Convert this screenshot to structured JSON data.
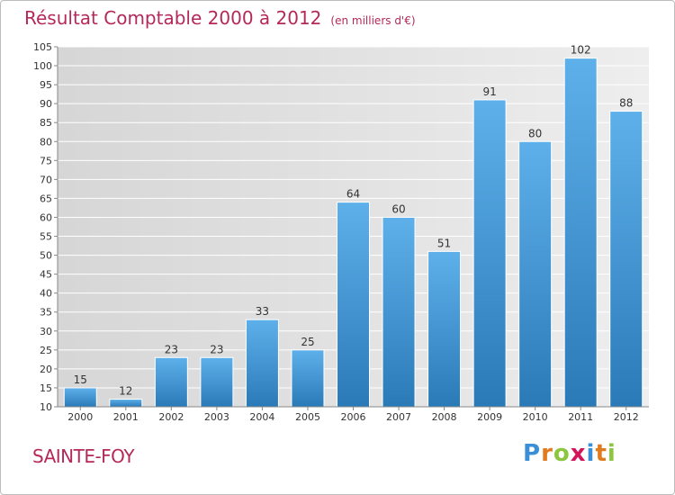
{
  "page": {
    "commune": "SAINTE-FOY",
    "brand": {
      "letters": [
        "P",
        "r",
        "o",
        "x",
        "i",
        "t",
        "i"
      ],
      "colors": [
        "#3a8fd6",
        "#e07b1f",
        "#8cc63f",
        "#d4145a",
        "#3a8fd6",
        "#e07b1f",
        "#8cc63f"
      ]
    }
  },
  "colors": {
    "title": "#b5295a",
    "bar_top": "#5eb0ea",
    "bar_bottom": "#2a7ab8",
    "background": "#e4e4e4",
    "grid": "#ffffff"
  },
  "chart_data": {
    "type": "bar",
    "title": "Résultat Comptable 2000 à 2012",
    "unit": "(en milliers d'€)",
    "categories": [
      "2000",
      "2001",
      "2002",
      "2003",
      "2004",
      "2005",
      "2006",
      "2007",
      "2008",
      "2009",
      "2010",
      "2011",
      "2012"
    ],
    "values": [
      15,
      12,
      23,
      23,
      33,
      25,
      64,
      60,
      51,
      91,
      80,
      102,
      88
    ],
    "ylim": [
      10,
      105
    ],
    "yticks": [
      10,
      15,
      20,
      25,
      30,
      35,
      40,
      45,
      50,
      55,
      60,
      65,
      70,
      75,
      80,
      85,
      90,
      95,
      100,
      105
    ],
    "grid": true
  }
}
